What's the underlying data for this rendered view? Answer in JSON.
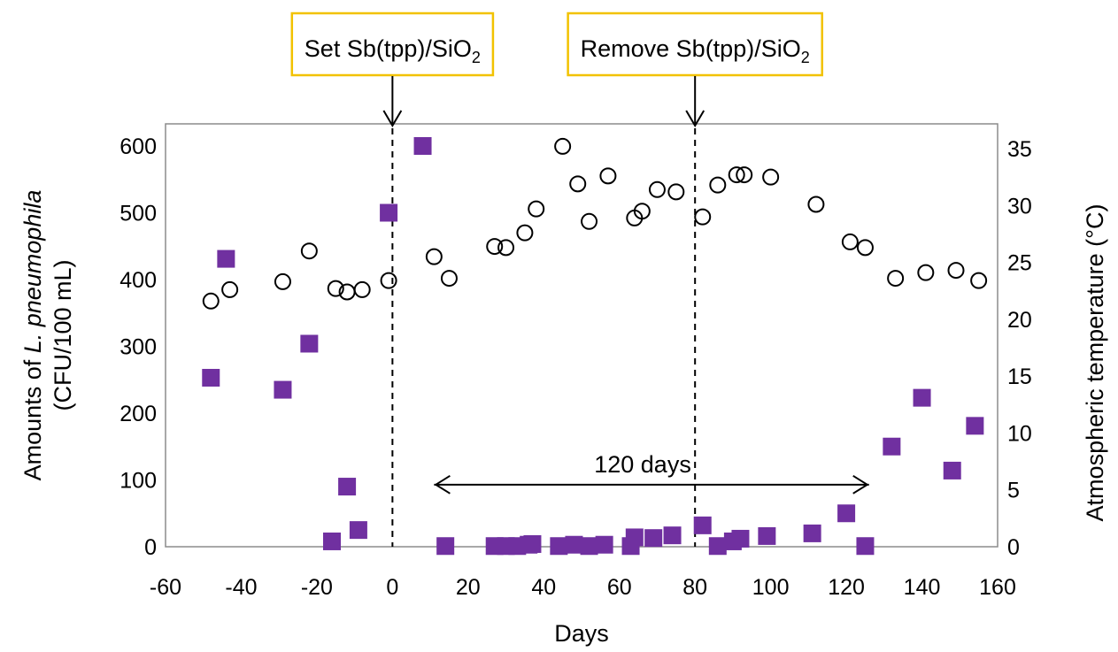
{
  "chart_data": {
    "type": "scatter",
    "xlabel": "Days",
    "ylabel_left_prefix": "Amounts of ",
    "ylabel_left_italic": "L. pneumophila",
    "ylabel_left_line2": "(CFU/100 mL)",
    "ylabel_right": "Atmospheric temperature (°C)",
    "xlim": [
      -60,
      160
    ],
    "xticks": [
      "-60",
      "-40",
      "-20",
      "0",
      "20",
      "40",
      "60",
      "80",
      "100",
      "120",
      "140",
      "160"
    ],
    "ylim_left": [
      0,
      600
    ],
    "yticks_left": [
      "0",
      "100",
      "200",
      "300",
      "400",
      "500",
      "600"
    ],
    "ylim_right": [
      0,
      35
    ],
    "yticks_right": [
      "0",
      "5",
      "10",
      "15",
      "20",
      "25",
      "30",
      "35"
    ],
    "grid": false,
    "series": [
      {
        "axis": "left",
        "marker": "filled-square",
        "color": "#7030a0",
        "points": [
          [
            -48,
            253
          ],
          [
            -44,
            431
          ],
          [
            -29,
            235
          ],
          [
            -22,
            304
          ],
          [
            -16,
            8
          ],
          [
            -12,
            90
          ],
          [
            -9,
            25
          ],
          [
            -1,
            500
          ],
          [
            8,
            600
          ],
          [
            14,
            1
          ],
          [
            27,
            1
          ],
          [
            30,
            1
          ],
          [
            33,
            1
          ],
          [
            36,
            3
          ],
          [
            37,
            4
          ],
          [
            44,
            1
          ],
          [
            48,
            3
          ],
          [
            52,
            1
          ],
          [
            56,
            3
          ],
          [
            63,
            1
          ],
          [
            64,
            14
          ],
          [
            69,
            13
          ],
          [
            74,
            17
          ],
          [
            82,
            32
          ],
          [
            86,
            1
          ],
          [
            90,
            8
          ],
          [
            92,
            12
          ],
          [
            99,
            16
          ],
          [
            111,
            20
          ],
          [
            120,
            50
          ],
          [
            125,
            1
          ],
          [
            132,
            150
          ],
          [
            140,
            223
          ],
          [
            148,
            114
          ],
          [
            154,
            181
          ]
        ]
      },
      {
        "axis": "right",
        "marker": "open-circle",
        "color": "#000000",
        "points": [
          [
            -48,
            21.6
          ],
          [
            -43,
            22.6
          ],
          [
            -29,
            23.3
          ],
          [
            -22,
            26.0
          ],
          [
            -15,
            22.7
          ],
          [
            -12,
            22.4
          ],
          [
            -8,
            22.6
          ],
          [
            -1,
            23.4
          ],
          [
            11,
            25.5
          ],
          [
            15,
            23.6
          ],
          [
            27,
            26.4
          ],
          [
            30,
            26.3
          ],
          [
            35,
            27.6
          ],
          [
            38,
            29.7
          ],
          [
            45,
            35.2
          ],
          [
            49,
            31.9
          ],
          [
            52,
            28.6
          ],
          [
            57,
            32.6
          ],
          [
            64,
            28.9
          ],
          [
            66,
            29.5
          ],
          [
            70,
            31.4
          ],
          [
            75,
            31.2
          ],
          [
            82,
            29.0
          ],
          [
            86,
            31.8
          ],
          [
            91,
            32.7
          ],
          [
            93,
            32.7
          ],
          [
            100,
            32.5
          ],
          [
            112,
            30.1
          ],
          [
            121,
            26.8
          ],
          [
            125,
            26.3
          ],
          [
            133,
            23.6
          ],
          [
            141,
            24.1
          ],
          [
            149,
            24.3
          ],
          [
            155,
            23.4
          ]
        ]
      }
    ],
    "vlines": [
      0,
      80
    ],
    "annotations": [
      {
        "label": "Set Sb(tpp)/SiO",
        "sub": "2",
        "x": 0
      },
      {
        "label": "Remove Sb(tpp)/SiO",
        "sub": "2",
        "x": 80
      }
    ],
    "range_arrow": {
      "label": "120 days",
      "from": 11,
      "to": 126,
      "left_value": 85
    },
    "colors": {
      "box_border": "#f2c200",
      "square_fill": "#7030a0"
    }
  }
}
